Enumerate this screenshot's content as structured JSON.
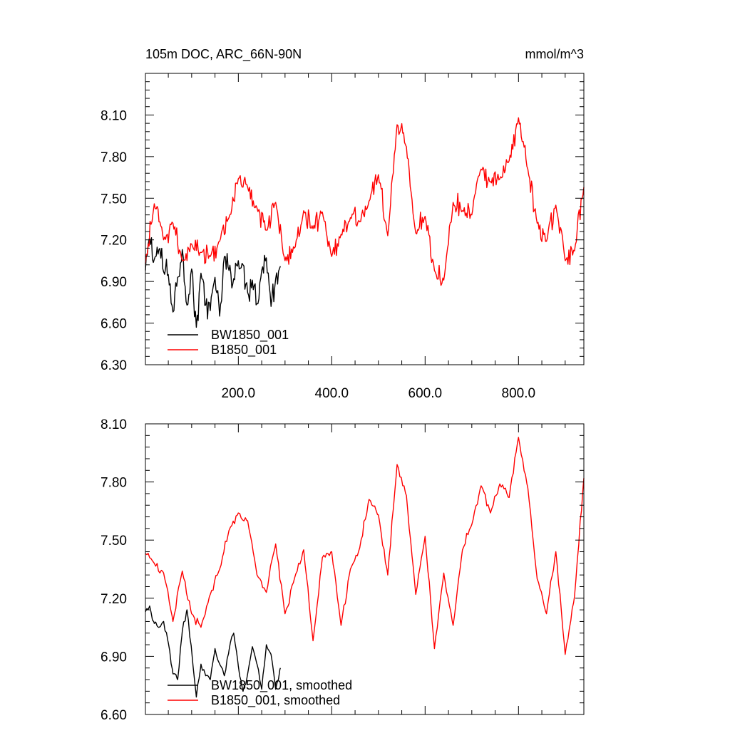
{
  "chart_data": [
    {
      "type": "line",
      "title": "105m DOC, ARC_66N-90N",
      "units": "mmol/m^3",
      "xlabel": "",
      "ylabel": "",
      "xlim": [
        1,
        940
      ],
      "ylim": [
        6.3,
        8.4
      ],
      "xticks": [
        200,
        400,
        600,
        800
      ],
      "xtick_labels": [
        "200.0",
        "400.0",
        "600.0",
        "800.0"
      ],
      "yticks": [
        6.3,
        6.6,
        6.9,
        7.2,
        7.5,
        7.8,
        8.1
      ],
      "ytick_labels": [
        "6.30",
        "6.60",
        "6.90",
        "7.20",
        "7.50",
        "7.80",
        "8.10"
      ],
      "grid": false,
      "legend_position": "bottom-left",
      "series": [
        {
          "name": "BW1850_001",
          "color": "#000000",
          "x": [
            1,
            10,
            20,
            30,
            40,
            50,
            60,
            70,
            80,
            90,
            100,
            110,
            120,
            130,
            140,
            150,
            160,
            170,
            180,
            190,
            200,
            210,
            220,
            230,
            240,
            250,
            260,
            270,
            280,
            290
          ],
          "values": [
            6.98,
            7.21,
            7.06,
            7.13,
            6.97,
            6.95,
            6.68,
            6.93,
            7.13,
            6.73,
            6.99,
            6.57,
            6.96,
            6.73,
            6.69,
            6.93,
            6.65,
            7.08,
            6.98,
            6.92,
            7.05,
            7.02,
            6.82,
            6.91,
            6.74,
            6.98,
            7.07,
            6.72,
            6.92,
            7.01
          ]
        },
        {
          "name": "B1850_001",
          "color": "#ff0000",
          "x": [
            1,
            20,
            40,
            60,
            80,
            100,
            120,
            140,
            160,
            180,
            200,
            220,
            240,
            260,
            280,
            300,
            320,
            340,
            360,
            380,
            400,
            420,
            440,
            460,
            480,
            500,
            520,
            540,
            560,
            580,
            600,
            620,
            640,
            660,
            680,
            700,
            720,
            740,
            760,
            780,
            800,
            820,
            840,
            860,
            880,
            900,
            920,
            940
          ],
          "values": [
            7.03,
            7.46,
            7.2,
            7.32,
            7.05,
            7.17,
            7.11,
            7.08,
            7.19,
            7.36,
            7.64,
            7.58,
            7.43,
            7.27,
            7.47,
            7.05,
            7.14,
            7.41,
            7.28,
            7.4,
            7.08,
            7.24,
            7.36,
            7.33,
            7.48,
            7.67,
            7.23,
            8.03,
            7.87,
            7.25,
            7.37,
            6.98,
            6.91,
            7.47,
            7.41,
            7.38,
            7.71,
            7.62,
            7.64,
            7.77,
            8.08,
            7.71,
            7.32,
            7.19,
            7.45,
            7.05,
            7.12,
            7.58
          ]
        }
      ]
    },
    {
      "type": "line",
      "title": "",
      "xlabel": "",
      "ylabel": "",
      "xlim": [
        1,
        940
      ],
      "ylim": [
        6.6,
        8.1
      ],
      "xticks": [
        200,
        400,
        600,
        800
      ],
      "xtick_labels": [],
      "yticks": [
        6.6,
        6.9,
        7.2,
        7.5,
        7.8,
        8.1
      ],
      "ytick_labels": [
        "6.60",
        "6.90",
        "7.20",
        "7.50",
        "7.80",
        "8.10"
      ],
      "grid": false,
      "legend_position": "bottom-left",
      "series": [
        {
          "name": "BW1850_001, smoothed",
          "color": "#000000",
          "x": [
            1,
            10,
            20,
            30,
            40,
            50,
            60,
            70,
            80,
            90,
            100,
            110,
            120,
            130,
            140,
            150,
            160,
            170,
            180,
            190,
            200,
            210,
            220,
            230,
            240,
            250,
            260,
            270,
            280,
            290
          ],
          "values": [
            7.13,
            7.16,
            7.07,
            7.05,
            7.08,
            6.97,
            6.81,
            6.78,
            7.03,
            7.14,
            6.93,
            6.69,
            6.86,
            6.8,
            6.78,
            6.94,
            6.86,
            6.8,
            6.93,
            7.02,
            6.85,
            6.72,
            6.81,
            6.95,
            6.86,
            6.73,
            6.96,
            6.91,
            6.73,
            6.84
          ]
        },
        {
          "name": "B1850_001, smoothed",
          "color": "#ff0000",
          "x": [
            1,
            20,
            40,
            60,
            80,
            100,
            120,
            140,
            160,
            180,
            200,
            220,
            240,
            260,
            280,
            300,
            320,
            340,
            360,
            380,
            400,
            420,
            440,
            460,
            480,
            500,
            520,
            540,
            560,
            580,
            600,
            620,
            640,
            660,
            680,
            700,
            720,
            740,
            760,
            780,
            800,
            820,
            840,
            860,
            880,
            900,
            920,
            940
          ],
          "values": [
            7.43,
            7.38,
            7.33,
            7.08,
            7.34,
            7.12,
            7.05,
            7.22,
            7.35,
            7.55,
            7.64,
            7.6,
            7.32,
            7.23,
            7.48,
            7.12,
            7.3,
            7.45,
            6.98,
            7.41,
            7.44,
            7.06,
            7.35,
            7.46,
            7.71,
            7.63,
            7.32,
            7.89,
            7.73,
            7.22,
            7.52,
            6.94,
            7.33,
            7.06,
            7.45,
            7.58,
            7.78,
            7.64,
            7.79,
            7.72,
            8.03,
            7.77,
            7.3,
            7.12,
            7.44,
            6.91,
            7.21,
            7.82
          ]
        }
      ]
    }
  ]
}
